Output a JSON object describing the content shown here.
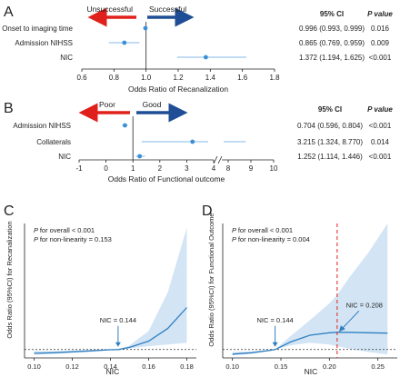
{
  "chart_data": [
    {
      "type": "forest",
      "panel_letter": "A",
      "xlabel": "Odds Ratio of Recanalization",
      "xlim": [
        0.6,
        1.8
      ],
      "xticks": [
        "0.6",
        "0.8",
        "1.0",
        "1.2",
        "1.4",
        "1.6",
        "1.8"
      ],
      "reference_line": 1.0,
      "direction_labels": {
        "left": "Unsuccessful",
        "right": "Successful"
      },
      "column_headers": {
        "ci": "95% CI",
        "p": "P value"
      },
      "rows": [
        {
          "label": "Onset to imaging time",
          "or": 0.996,
          "lo": 0.993,
          "hi": 0.999,
          "ci_text": "0.996 (0.993, 0.999)",
          "p": "0.016"
        },
        {
          "label": "Admission NIHSS",
          "or": 0.865,
          "lo": 0.769,
          "hi": 0.959,
          "ci_text": "0.865 (0.769, 0.959)",
          "p": "0.009"
        },
        {
          "label": "NIC",
          "or": 1.372,
          "lo": 1.194,
          "hi": 1.625,
          "ci_text": "1.372 (1.194, 1.625)",
          "p": "<0.001"
        }
      ]
    },
    {
      "type": "forest",
      "panel_letter": "B",
      "xlabel": "Odds Ratio of Functional outcome",
      "xticks": [
        "-1",
        "0",
        "1",
        "2",
        "3",
        "4",
        "8",
        "9",
        "10"
      ],
      "axis_break": [
        4,
        8
      ],
      "reference_line": 1.0,
      "direction_labels": {
        "left": "Poor",
        "right": "Good"
      },
      "column_headers": {
        "ci": "95% CI",
        "p": "P value"
      },
      "rows": [
        {
          "label": "Admission NIHSS",
          "or": 0.704,
          "lo": 0.596,
          "hi": 0.804,
          "ci_text": "0.704 (0.596, 0.804)",
          "p": "<0.001"
        },
        {
          "label": "Collaterals",
          "or": 3.215,
          "lo": 1.324,
          "hi": 8.77,
          "ci_text": "3.215 (1.324, 8.770)",
          "p": "0.014"
        },
        {
          "label": "NIC",
          "or": 1.252,
          "lo": 1.114,
          "hi": 1.446,
          "ci_text": "1.252 (1.114, 1.446)",
          "p": "<0.001"
        }
      ]
    },
    {
      "type": "line",
      "panel_letter": "C",
      "xlabel": "NIC",
      "ylabel": "Odds Ratio (95%CI) for Recanalization",
      "xlim": [
        0.095,
        0.185
      ],
      "ylim": [
        0,
        16
      ],
      "xticks": [
        "0.10",
        "0.12",
        "0.14",
        "0.16",
        "0.18"
      ],
      "reference_line": 1.0,
      "annotations": {
        "p_overall": "for overall < 0.001",
        "p_nonlin": "for non-linearity = 0.153",
        "threshold_label": "NIC = 0.144",
        "threshold_x": 0.144
      },
      "series": [
        {
          "x": [
            0.1,
            0.11,
            0.12,
            0.13,
            0.14,
            0.144,
            0.15,
            0.16,
            0.17,
            0.18
          ],
          "y": [
            0.55,
            0.62,
            0.72,
            0.84,
            0.97,
            1.0,
            1.25,
            2.0,
            3.5,
            6.0
          ],
          "lo": [
            0.38,
            0.48,
            0.6,
            0.74,
            0.93,
            1.0,
            1.12,
            1.4,
            1.6,
            1.8
          ],
          "hi": [
            0.85,
            0.8,
            0.88,
            0.96,
            1.02,
            1.0,
            1.5,
            3.2,
            7.8,
            15.5
          ]
        }
      ]
    },
    {
      "type": "line",
      "panel_letter": "D",
      "xlabel": "NIC",
      "ylabel": "Odds Ratio (95%CI) for Functional Outcome",
      "xlim": [
        0.09,
        0.27
      ],
      "ylim": [
        0,
        16
      ],
      "xticks": [
        "0.10",
        "0.15",
        "0.20",
        "0.25"
      ],
      "reference_line": 1.0,
      "annotations": {
        "p_overall": "for overall < 0.001",
        "p_nonlin": "for non-linearity = 0.004",
        "threshold_label": "NIC = 0.144",
        "threshold_x": 0.144,
        "threshold2_label": "NIC = 0.208",
        "threshold2_x": 0.208
      },
      "series": [
        {
          "x": [
            0.1,
            0.12,
            0.14,
            0.144,
            0.16,
            0.18,
            0.2,
            0.208,
            0.22,
            0.24,
            0.26
          ],
          "y": [
            0.45,
            0.62,
            0.92,
            1.0,
            1.9,
            2.7,
            3.0,
            3.05,
            3.05,
            3.0,
            2.95
          ],
          "lo": [
            0.3,
            0.5,
            0.85,
            1.0,
            1.5,
            1.8,
            1.6,
            1.4,
            1.1,
            0.7,
            0.4
          ],
          "hi": [
            0.7,
            0.78,
            0.98,
            1.0,
            2.6,
            4.5,
            6.5,
            7.5,
            9.5,
            12.5,
            16.0
          ]
        }
      ]
    }
  ]
}
